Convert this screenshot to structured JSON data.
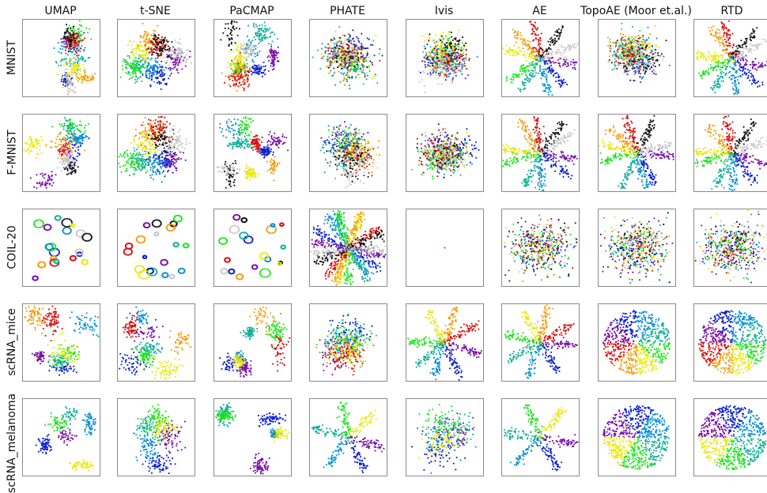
{
  "chart_data": {
    "type": "scatter",
    "title": "",
    "columns": [
      "UMAP",
      "t-SNE",
      "PaCMAP",
      "PHATE",
      "Ivis",
      "AE",
      "TopoAE (Moor et.al.)",
      "RTD"
    ],
    "rows": [
      "MNIST",
      "F-MNIST",
      "COIL-20",
      "scRNA_mice",
      "scRNA_melanoma"
    ],
    "grid": false,
    "axes_ticks": false,
    "legend": "none",
    "palette": [
      "#7a0fa8",
      "#0a1fd1",
      "#0a8fd6",
      "#12b09a",
      "#19e619",
      "#e8e80a",
      "#f59a0a",
      "#d90f0f",
      "#111111",
      "#c8c8c8"
    ],
    "panels": [
      {
        "row": "MNIST",
        "method": "UMAP",
        "layout": "islands",
        "clusters": 10
      },
      {
        "row": "MNIST",
        "method": "t-SNE",
        "layout": "packed",
        "clusters": 10
      },
      {
        "row": "MNIST",
        "method": "PaCMAP",
        "layout": "islands",
        "clusters": 10
      },
      {
        "row": "MNIST",
        "method": "PHATE",
        "layout": "blob",
        "clusters": 10
      },
      {
        "row": "MNIST",
        "method": "Ivis",
        "layout": "blob",
        "clusters": 10
      },
      {
        "row": "MNIST",
        "method": "AE",
        "layout": "rays",
        "clusters": 10
      },
      {
        "row": "MNIST",
        "method": "TopoAE (Moor et.al.)",
        "layout": "blob",
        "clusters": 10
      },
      {
        "row": "MNIST",
        "method": "RTD",
        "layout": "rays",
        "clusters": 10
      },
      {
        "row": "F-MNIST",
        "method": "UMAP",
        "layout": "islands",
        "clusters": 10
      },
      {
        "row": "F-MNIST",
        "method": "t-SNE",
        "layout": "packed",
        "clusters": 10
      },
      {
        "row": "F-MNIST",
        "method": "PaCMAP",
        "layout": "islands",
        "clusters": 10
      },
      {
        "row": "F-MNIST",
        "method": "PHATE",
        "layout": "blob",
        "clusters": 10
      },
      {
        "row": "F-MNIST",
        "method": "Ivis",
        "layout": "blob",
        "clusters": 10
      },
      {
        "row": "F-MNIST",
        "method": "AE",
        "layout": "rays",
        "clusters": 10
      },
      {
        "row": "F-MNIST",
        "method": "TopoAE (Moor et.al.)",
        "layout": "rays",
        "clusters": 10
      },
      {
        "row": "F-MNIST",
        "method": "RTD",
        "layout": "rays",
        "clusters": 10
      },
      {
        "row": "COIL-20",
        "method": "UMAP",
        "layout": "rings",
        "clusters": 20
      },
      {
        "row": "COIL-20",
        "method": "t-SNE",
        "layout": "rings",
        "clusters": 20
      },
      {
        "row": "COIL-20",
        "method": "PaCMAP",
        "layout": "rings",
        "clusters": 20
      },
      {
        "row": "COIL-20",
        "method": "PHATE",
        "layout": "rays",
        "clusters": 20
      },
      {
        "row": "COIL-20",
        "method": "Ivis",
        "layout": "point",
        "clusters": 1
      },
      {
        "row": "COIL-20",
        "method": "AE",
        "layout": "cloud",
        "clusters": 20
      },
      {
        "row": "COIL-20",
        "method": "TopoAE (Moor et.al.)",
        "layout": "cloud",
        "clusters": 20
      },
      {
        "row": "COIL-20",
        "method": "RTD",
        "layout": "cloud",
        "clusters": 20
      },
      {
        "row": "scRNA_mice",
        "method": "UMAP",
        "layout": "islands",
        "clusters": 8
      },
      {
        "row": "scRNA_mice",
        "method": "t-SNE",
        "layout": "islands",
        "clusters": 8
      },
      {
        "row": "scRNA_mice",
        "method": "PaCMAP",
        "layout": "islands",
        "clusters": 8
      },
      {
        "row": "scRNA_mice",
        "method": "PHATE",
        "layout": "blob",
        "clusters": 8
      },
      {
        "row": "scRNA_mice",
        "method": "Ivis",
        "layout": "rays",
        "clusters": 8
      },
      {
        "row": "scRNA_mice",
        "method": "AE",
        "layout": "rays",
        "clusters": 8
      },
      {
        "row": "scRNA_mice",
        "method": "TopoAE (Moor et.al.)",
        "layout": "disc",
        "clusters": 8
      },
      {
        "row": "scRNA_mice",
        "method": "RTD",
        "layout": "disc",
        "clusters": 8
      },
      {
        "row": "scRNA_melanoma",
        "method": "UMAP",
        "layout": "islands",
        "clusters": 6
      },
      {
        "row": "scRNA_melanoma",
        "method": "t-SNE",
        "layout": "packed",
        "clusters": 6
      },
      {
        "row": "scRNA_melanoma",
        "method": "PaCMAP",
        "layout": "islands",
        "clusters": 6
      },
      {
        "row": "scRNA_melanoma",
        "method": "PHATE",
        "layout": "rays",
        "clusters": 6
      },
      {
        "row": "scRNA_melanoma",
        "method": "Ivis",
        "layout": "blob",
        "clusters": 6
      },
      {
        "row": "scRNA_melanoma",
        "method": "AE",
        "layout": "rays",
        "clusters": 6
      },
      {
        "row": "scRNA_melanoma",
        "method": "TopoAE (Moor et.al.)",
        "layout": "disc",
        "clusters": 6
      },
      {
        "row": "scRNA_melanoma",
        "method": "RTD",
        "layout": "disc",
        "clusters": 6
      }
    ]
  }
}
